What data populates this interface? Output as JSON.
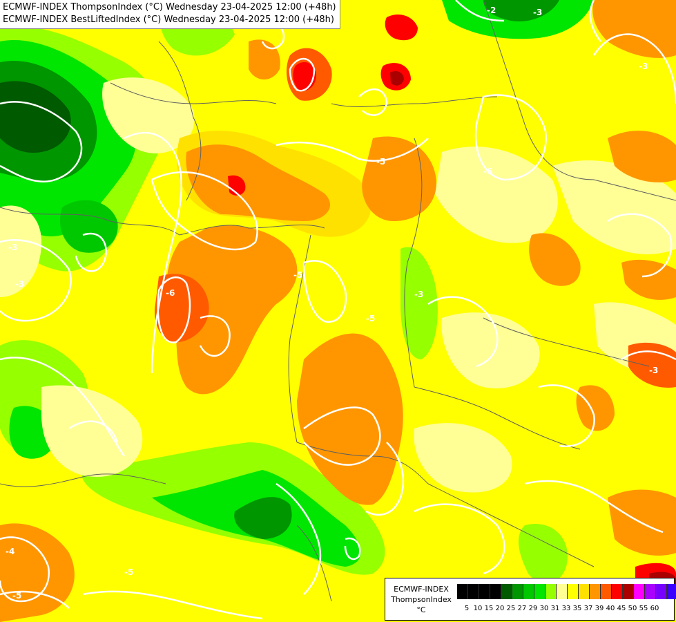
{
  "titles": {
    "line1": "ECMWF-INDEX ThompsonIndex (°C) Wednesday 23-04-2025 12:00 (+48h)",
    "line2": "ECMWF-INDEX BestLiftedIndex (°C) Wednesday 23-04-2025 12:00 (+48h)"
  },
  "legend": {
    "model": "ECMWF-INDEX",
    "parameter": "ThompsonIndex",
    "unit": "°C",
    "colors": [
      "#000000",
      "#000000",
      "#000000",
      "#000000",
      "#005a00",
      "#009600",
      "#00c800",
      "#00e600",
      "#96ff00",
      "#ffff96",
      "#ffff00",
      "#ffe100",
      "#ff9600",
      "#ff5a00",
      "#ff0000",
      "#aa0000",
      "#ff00ff",
      "#aa00ff",
      "#7800ff",
      "#3c00ff",
      "#0000ff"
    ],
    "ticks": [
      "5",
      "10",
      "15",
      "20",
      "25",
      "27",
      "29",
      "30",
      "31",
      "33",
      "35",
      "37",
      "39",
      "40",
      "45",
      "50",
      "55",
      "60"
    ]
  },
  "contour_labels": [
    "-2",
    "-3",
    "-3",
    "-3",
    "-3",
    "-5",
    "-5",
    "-6",
    "-6",
    "-5",
    "-3",
    "-3",
    "-4",
    "-5",
    "-5"
  ]
}
